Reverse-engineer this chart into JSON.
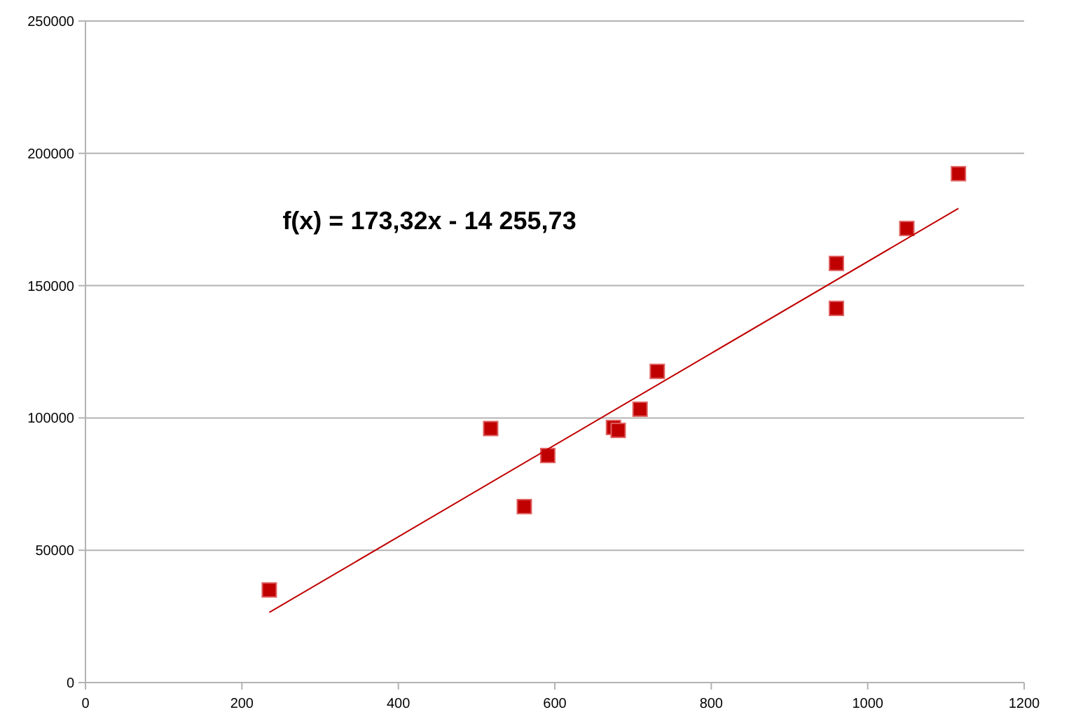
{
  "chart_data": {
    "type": "scatter",
    "xlim": [
      0,
      1200
    ],
    "ylim": [
      0,
      250000
    ],
    "xticks": [
      0,
      200,
      400,
      600,
      800,
      1000,
      1200
    ],
    "yticks": [
      0,
      50000,
      100000,
      150000,
      200000,
      250000
    ],
    "grid": "y",
    "annotations": [
      "f(x) = 173,32x - 14 255,73"
    ],
    "series": [
      {
        "color": "#c00000",
        "marker": "square",
        "x": [
          235,
          518,
          561,
          591,
          675,
          681,
          709,
          731,
          960,
          960,
          1050,
          1116
        ],
        "values": [
          35000,
          96000,
          66500,
          85800,
          96400,
          95300,
          103300,
          117600,
          158400,
          141400,
          171600,
          192300
        ]
      },
      {
        "type": "line",
        "color": "#c00000",
        "x": [
          235,
          1116
        ],
        "values": [
          26500,
          179200
        ]
      }
    ]
  }
}
